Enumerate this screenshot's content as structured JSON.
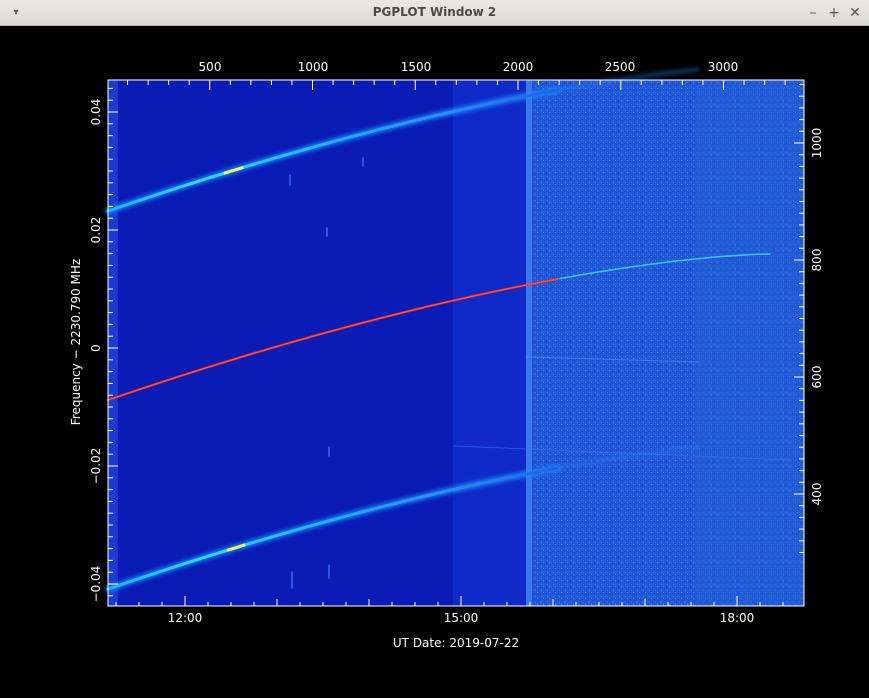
{
  "window": {
    "title": "PGPLOT Window 2",
    "menu_icon": "triangle-down-icon",
    "minimize_icon": "minus-icon",
    "maximize_icon": "plus-icon",
    "close_icon": "close-icon"
  },
  "chart_data": {
    "type": "heatmap",
    "title": "",
    "xlabel": "UT Date: 2019-07-22",
    "ylabel": "Frequency − 2230.790 MHz",
    "bottom_ticks": [
      "12:00",
      "15:00",
      "18:00"
    ],
    "top_ticks": [
      "500",
      "1000",
      "1500",
      "2000",
      "2500",
      "3000"
    ],
    "left_ticks": [
      "0.04",
      "0.02",
      "0",
      "−0.02",
      "−0.04"
    ],
    "right_ticks": [
      "1000",
      "800",
      "600",
      "400"
    ],
    "ylim": [
      -0.0435,
      0.045
    ],
    "xlim_hours": [
      11.25,
      18.75
    ],
    "colors": {
      "background_dark": "#0a18b4",
      "background_mid": "#0c25c8",
      "background_bright": "#1d55d8",
      "trace_center": "#ff2010",
      "trace_side": "#1fa8ff",
      "trace_peak": "#f0ff40"
    }
  }
}
